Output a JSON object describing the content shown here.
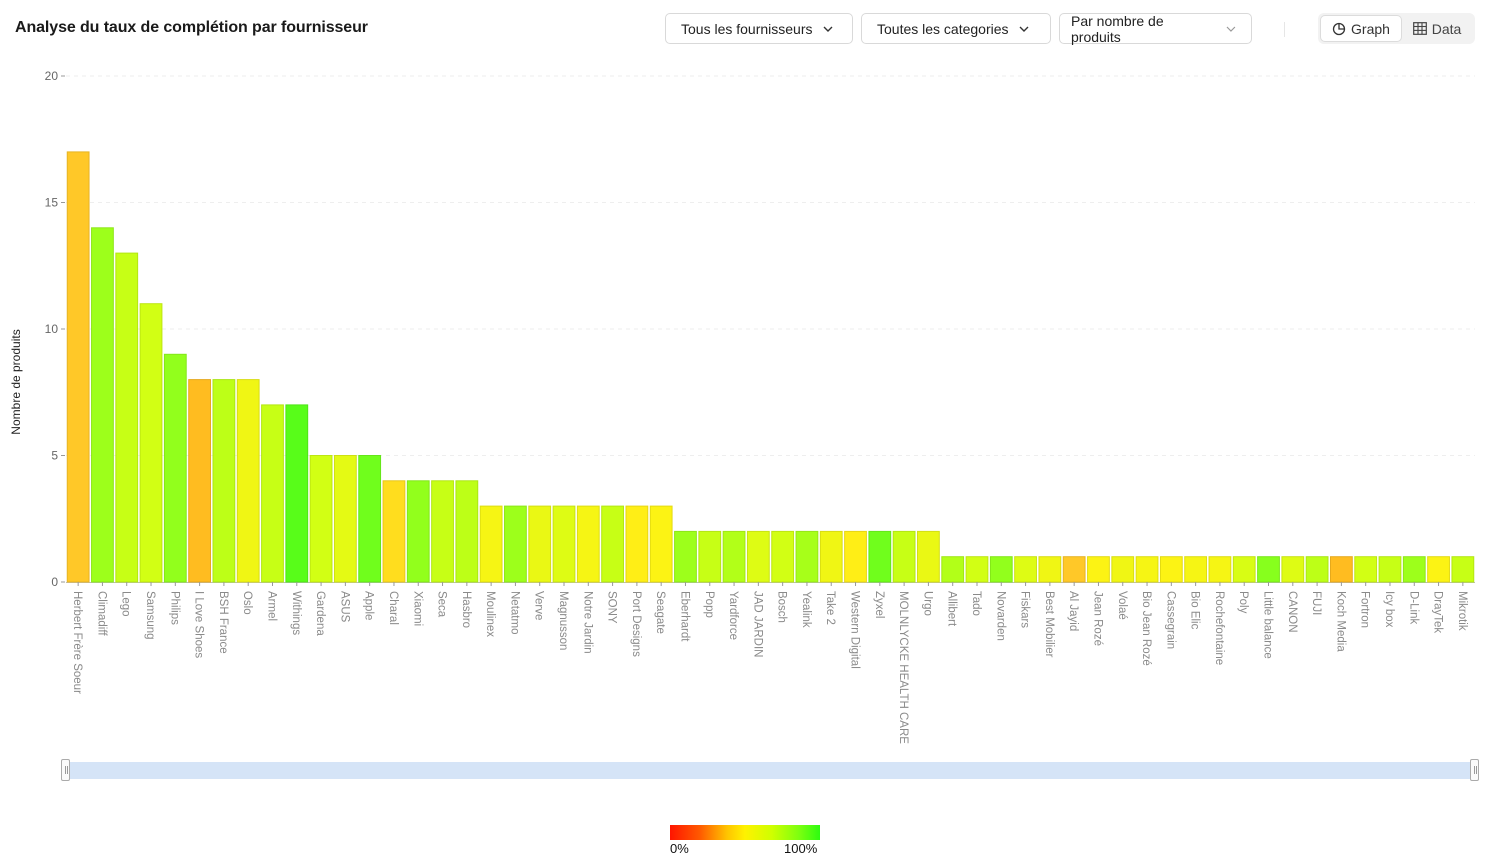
{
  "header": {
    "title": "Analyse du taux de complétion par fournisseur",
    "filters": {
      "suppliers": "Tous les fournisseurs",
      "categories": "Toutes les categories",
      "sort": "Par nombre de produits"
    },
    "view_toggle": {
      "graph_label": "Graph",
      "data_label": "Data",
      "active": "Graph"
    }
  },
  "legend": {
    "min_label": "0%",
    "max_label": "100%"
  },
  "colors": {
    "low": "#ff1500",
    "mid": "#fff200",
    "high": "#2dfc10",
    "slider": "#d5e4f7"
  },
  "chart_data": {
    "type": "bar",
    "ylabel": "Nombre de produits",
    "ylim": [
      0,
      20
    ],
    "yticks": [
      0,
      5,
      10,
      15,
      20
    ],
    "grid": true,
    "categories": [
      "Herbert Frère Soeur",
      "Climadiff",
      "Lego",
      "Samsung",
      "Philips",
      "I Love Shoes",
      "BSH France",
      "Oslo",
      "Armel",
      "Withings",
      "Gardena",
      "ASUS",
      "Apple",
      "Charal",
      "Xiaomi",
      "Seca",
      "Hasbro",
      "Moulinex",
      "Netatmo",
      "Verve",
      "Magnusson",
      "Notre Jardin",
      "SONY",
      "Port Designs",
      "Seagate",
      "Eberhardt",
      "Popp",
      "Yardforce",
      "JAD JARDIN",
      "Bosch",
      "Yealink",
      "Take 2",
      "Western Digital",
      "Zyxel",
      "MOLNLYCKE HEALTH CARE",
      "Urgo",
      "Allibert",
      "Tado",
      "Novarden",
      "Fiskars",
      "Best Mobilier",
      "Al Jayid",
      "Jean Rozé",
      "Volaé",
      "Bio Jean Rozé",
      "Cassegrain",
      "Bio Elic",
      "Rochefontaine",
      "Poly",
      "Little balance",
      "CANON",
      "FUJI",
      "Koch Media",
      "Fortron",
      "Icy box",
      "D-Link",
      "DrayTek",
      "Mikrotik"
    ],
    "values": [
      17,
      14,
      13,
      11,
      9,
      8,
      8,
      8,
      7,
      7,
      5,
      5,
      5,
      4,
      4,
      4,
      4,
      3,
      3,
      3,
      3,
      3,
      3,
      3,
      3,
      2,
      2,
      2,
      2,
      2,
      2,
      2,
      2,
      2,
      2,
      2,
      1,
      1,
      1,
      1,
      1,
      1,
      1,
      1,
      1,
      1,
      1,
      1,
      1,
      1,
      1,
      1,
      1,
      1,
      1,
      1,
      1,
      1
    ],
    "completion_pct": [
      45,
      80,
      72,
      70,
      82,
      42,
      74,
      60,
      72,
      92,
      70,
      64,
      88,
      50,
      82,
      72,
      74,
      58,
      80,
      62,
      66,
      58,
      72,
      54,
      56,
      80,
      72,
      76,
      66,
      70,
      78,
      60,
      54,
      88,
      72,
      62,
      76,
      70,
      82,
      66,
      60,
      45,
      56,
      60,
      58,
      56,
      58,
      58,
      68,
      84,
      66,
      74,
      42,
      70,
      72,
      80,
      56,
      72
    ],
    "legend": {
      "type": "color-scale",
      "position": "bottom-center",
      "min": "0%",
      "max": "100%"
    }
  }
}
